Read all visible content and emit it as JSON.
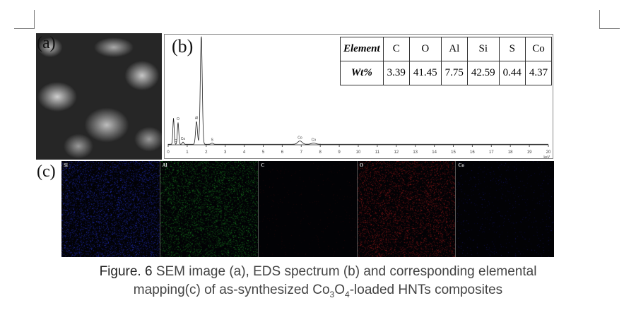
{
  "panels": {
    "a": "(a)",
    "b": "(b)",
    "c": "(c)"
  },
  "eds_table": {
    "header_label": "Element",
    "value_label": "Wt%",
    "elements": [
      "C",
      "O",
      "Al",
      "Si",
      "S",
      "Co"
    ],
    "wt_percent": [
      "3.39",
      "41.45",
      "7.75",
      "42.59",
      "0.44",
      "4.37"
    ]
  },
  "chart_data": {
    "type": "line",
    "title": "",
    "xlabel": "keV",
    "ylabel": "",
    "xlim": [
      0,
      20
    ],
    "x_ticks": [
      "0",
      "1",
      "2",
      "3",
      "4",
      "5",
      "6",
      "7",
      "8",
      "9",
      "10",
      "11",
      "12",
      "13",
      "14",
      "15",
      "16",
      "17",
      "18",
      "19",
      "20"
    ],
    "grid": false,
    "peaks": [
      {
        "label": "C",
        "energy": 0.28,
        "relative_intensity": 24
      },
      {
        "label": "O",
        "energy": 0.52,
        "relative_intensity": 20
      },
      {
        "label": "Co",
        "energy": 0.78,
        "relative_intensity": 2
      },
      {
        "label": "Al",
        "energy": 1.49,
        "relative_intensity": 21
      },
      {
        "label": "Si",
        "energy": 1.74,
        "relative_intensity": 100
      },
      {
        "label": "S",
        "energy": 2.31,
        "relative_intensity": 1
      },
      {
        "label": "Co",
        "energy": 6.93,
        "relative_intensity": 3
      },
      {
        "label": "Co",
        "energy": 7.65,
        "relative_intensity": 1
      }
    ]
  },
  "maps": [
    {
      "label": "Si",
      "color": "#2a3cff"
    },
    {
      "label": "Al",
      "color": "#1fb52a"
    },
    {
      "label": "C",
      "color": "#3a0a0a"
    },
    {
      "label": "O",
      "color": "#d42020"
    },
    {
      "label": "Co",
      "color": "#2020a0"
    }
  ],
  "caption": {
    "figure_label": "Figure. 6",
    "text_1": " SEM image (a), EDS spectrum (b) and corresponding elemental",
    "text_2a": "mapping(c) of as-synthesized Co",
    "sub_3": "3",
    "text_2b": "O",
    "sub_4": "4",
    "text_2c": "-loaded HNTs composites"
  }
}
